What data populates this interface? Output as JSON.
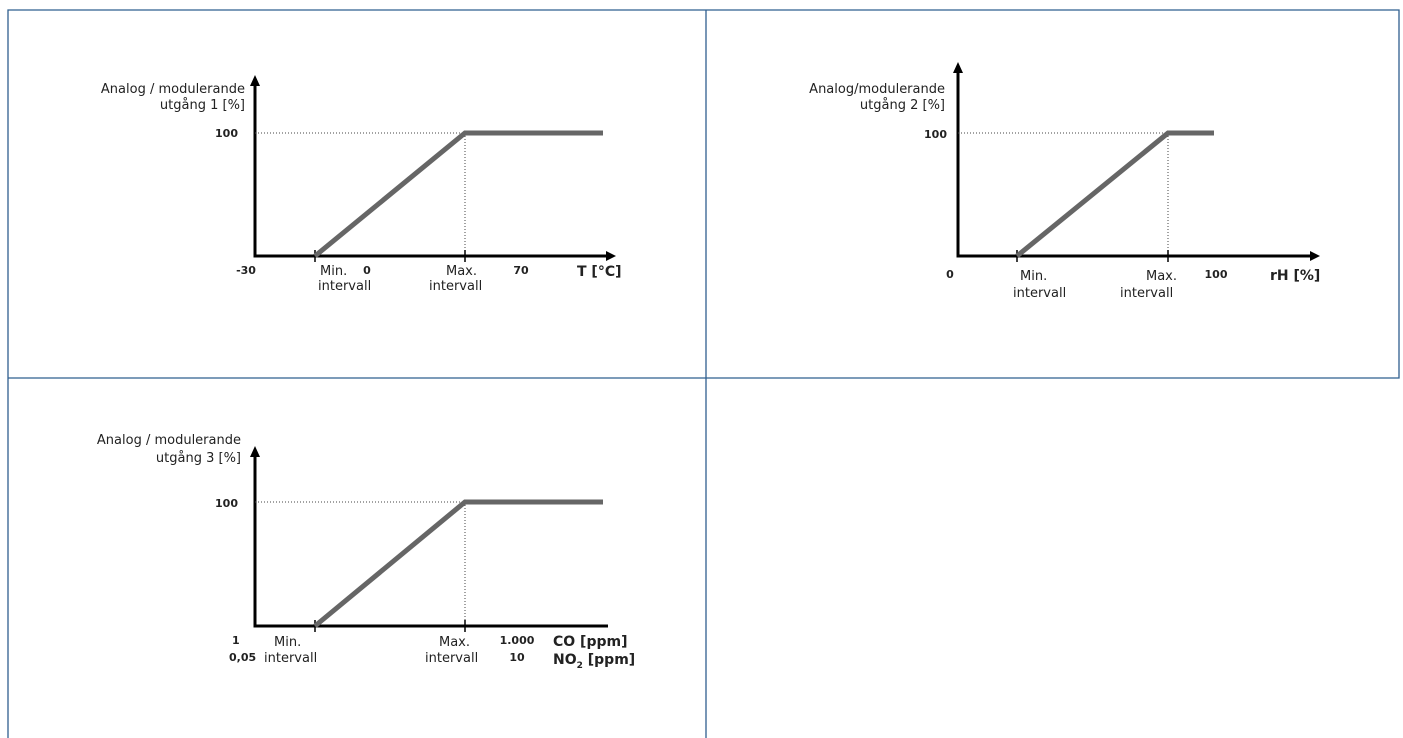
{
  "panels": [
    {
      "y_label": [
        "Analog / modulerande",
        "utgång 1 [%]"
      ],
      "y_top": "100",
      "x_start": "-30",
      "x_mid": "0",
      "x_end": "70",
      "x_axis": "T [°C]",
      "min_label": [
        "Min.",
        "intervall"
      ],
      "max_label": [
        "Max.",
        "intervall"
      ]
    },
    {
      "y_label": [
        "Analog/modulerande",
        "utgång 2 [%]"
      ],
      "y_top": "100",
      "x_start": "0",
      "x_end": "100",
      "x_axis": "rH [%]",
      "min_label": [
        "Min.",
        "intervall"
      ],
      "max_label": [
        "Max.",
        "intervall"
      ]
    },
    {
      "y_label": [
        "Analog / modulerande",
        "utgång 3 [%]"
      ],
      "y_top": "100",
      "x_start": [
        "1",
        "0,05"
      ],
      "x_end": [
        "1.000",
        "10"
      ],
      "x_axis": [
        "CO [ppm]",
        {
          "base": "NO",
          "sub": "2",
          "unit": " [ppm]"
        }
      ],
      "min_label": [
        "Min.",
        "intervall"
      ],
      "max_label": [
        "Max.",
        "intervall"
      ]
    }
  ]
}
